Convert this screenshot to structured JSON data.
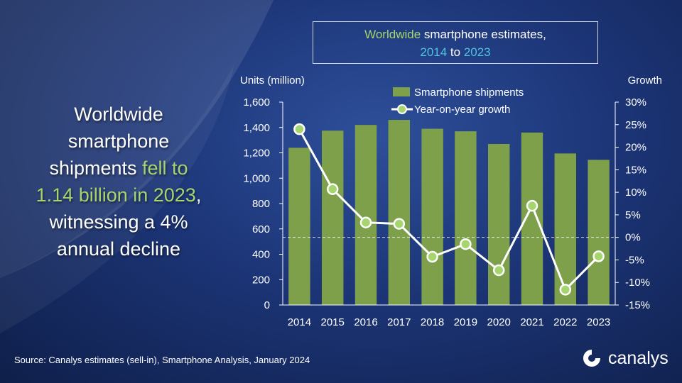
{
  "headline": {
    "line1": "Worldwide",
    "line2": "smartphone",
    "line3_a": "shipments ",
    "line3_b": "fell to",
    "line4_a": "1.14 billion in 2023",
    "line4_b": ",",
    "line5": "witnessing a 4%",
    "line6": "annual decline"
  },
  "title_box": {
    "w1": "Worldwide",
    "w2": " smartphone estimates,",
    "y1": "2014",
    "w3": " to ",
    "y2": "2023"
  },
  "source": "Source:  Canalys estimates (sell-in), Smartphone Analysis, January 2024",
  "logo": {
    "text": "canalys",
    "icon": "canalys-logo-icon"
  },
  "colors": {
    "bar": "#7ea04b",
    "line": "#ffffff",
    "marker_fill": "#a6d46e",
    "highlight": "#a6d46e",
    "year_highlight": "#4fc3e0"
  },
  "chart_data": {
    "type": "bar",
    "categories": [
      "2014",
      "2015",
      "2016",
      "2017",
      "2018",
      "2019",
      "2020",
      "2021",
      "2022",
      "2023"
    ],
    "series": [
      {
        "name": "Smartphone shipments",
        "type": "bar",
        "axis": "left",
        "values": [
          1240,
          1375,
          1420,
          1460,
          1390,
          1370,
          1270,
          1360,
          1195,
          1145
        ]
      },
      {
        "name": "Year-on-year growth",
        "type": "line",
        "axis": "right",
        "values": [
          24,
          10.7,
          3.3,
          3.0,
          -4.3,
          -1.5,
          -7.3,
          7.0,
          -11.6,
          -4.2
        ]
      }
    ],
    "ylabel": "Units (million)",
    "y2label": "Growth",
    "ylim": [
      0,
      1600
    ],
    "yticks": [
      "1,600",
      "1,400",
      "1,200",
      "1,000",
      "800",
      "600",
      "400",
      "200",
      "0"
    ],
    "y2lim": [
      -15,
      30
    ],
    "y2ticks": [
      "30%",
      "25%",
      "20%",
      "15%",
      "10%",
      "5%",
      "0%",
      "-5%",
      "-10%",
      "-15%"
    ],
    "zero_growth_line": "dashed",
    "legend_position": "top",
    "grid": false
  }
}
